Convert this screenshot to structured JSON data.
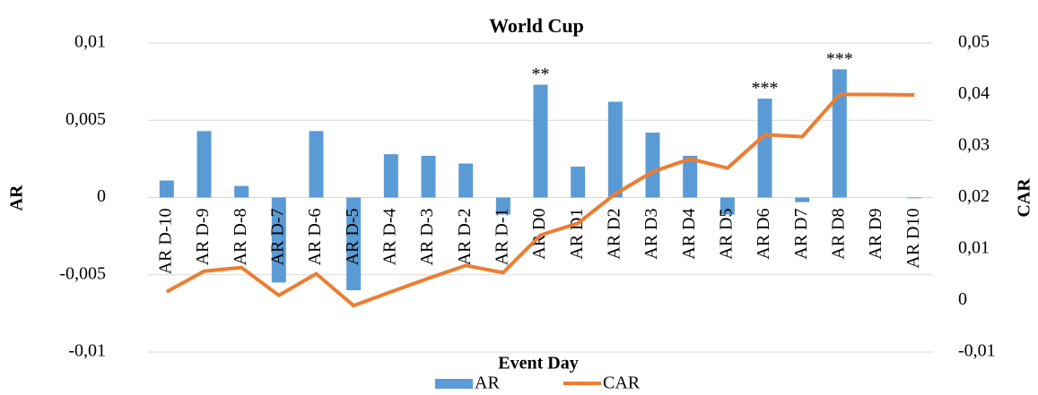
{
  "chart_data": {
    "type": "bar-line",
    "title": "World Cup",
    "x_label": "Event Day",
    "y_label": "AR",
    "y2_label": "CAR",
    "categories": [
      "AR D-10",
      "AR D-9",
      "AR D-8",
      "AR D-7",
      "AR D-6",
      "AR D-5",
      "AR D-4",
      "AR D-3",
      "AR D-2",
      "AR D-1",
      "AR D0",
      "AR D1",
      "AR D2",
      "AR D3",
      "AR D4",
      "AR D5",
      "AR D6",
      "AR D7",
      "AR D8",
      "AR D9",
      "AR D10"
    ],
    "series": [
      {
        "name": "AR",
        "type": "bar",
        "color": "#5b9bd5",
        "values": [
          0.0011,
          0.0043,
          0.00075,
          -0.0055,
          0.0043,
          -0.006,
          0.0028,
          0.0027,
          0.0022,
          -0.0011,
          0.0073,
          0.002,
          0.0062,
          0.0042,
          0.0027,
          -0.0011,
          0.0064,
          -0.0003,
          0.0083,
          0,
          -5e-05
        ]
      },
      {
        "name": "CAR",
        "type": "line",
        "axis": "y2",
        "color": "#ed7d31",
        "values": [
          0.0017,
          0.0057,
          0.0064,
          0.001,
          0.0052,
          -0.001,
          0.0017,
          0.0043,
          0.0068,
          0.0054,
          0.0127,
          0.015,
          0.0207,
          0.025,
          0.0275,
          0.0257,
          0.0322,
          0.0318,
          0.04,
          0.04,
          0.0399
        ]
      }
    ],
    "annotations": [
      {
        "category": "AR D0",
        "text": "**"
      },
      {
        "category": "AR D6",
        "text": "***"
      },
      {
        "category": "AR D8",
        "text": "***"
      }
    ],
    "ylim": [
      -0.01,
      0.01
    ],
    "yticks": [
      {
        "value": -0.01,
        "label": "-0,01"
      },
      {
        "value": -0.005,
        "label": "-0,005"
      },
      0,
      {
        "value": 0.005,
        "label": "0,005"
      },
      {
        "value": 0.01,
        "label": "0,01"
      }
    ],
    "y2lim": [
      -0.01,
      0.05
    ],
    "y2ticks": [
      {
        "value": -0.01,
        "label": "-0,01"
      },
      0,
      {
        "value": 0.01,
        "label": "0,01"
      },
      {
        "value": 0.02,
        "label": "0,02"
      },
      {
        "value": 0.03,
        "label": "0,03"
      },
      {
        "value": 0.04,
        "label": "0,04"
      },
      {
        "value": 0.05,
        "label": "0,05"
      }
    ],
    "grid": true,
    "legend": "bottom"
  }
}
